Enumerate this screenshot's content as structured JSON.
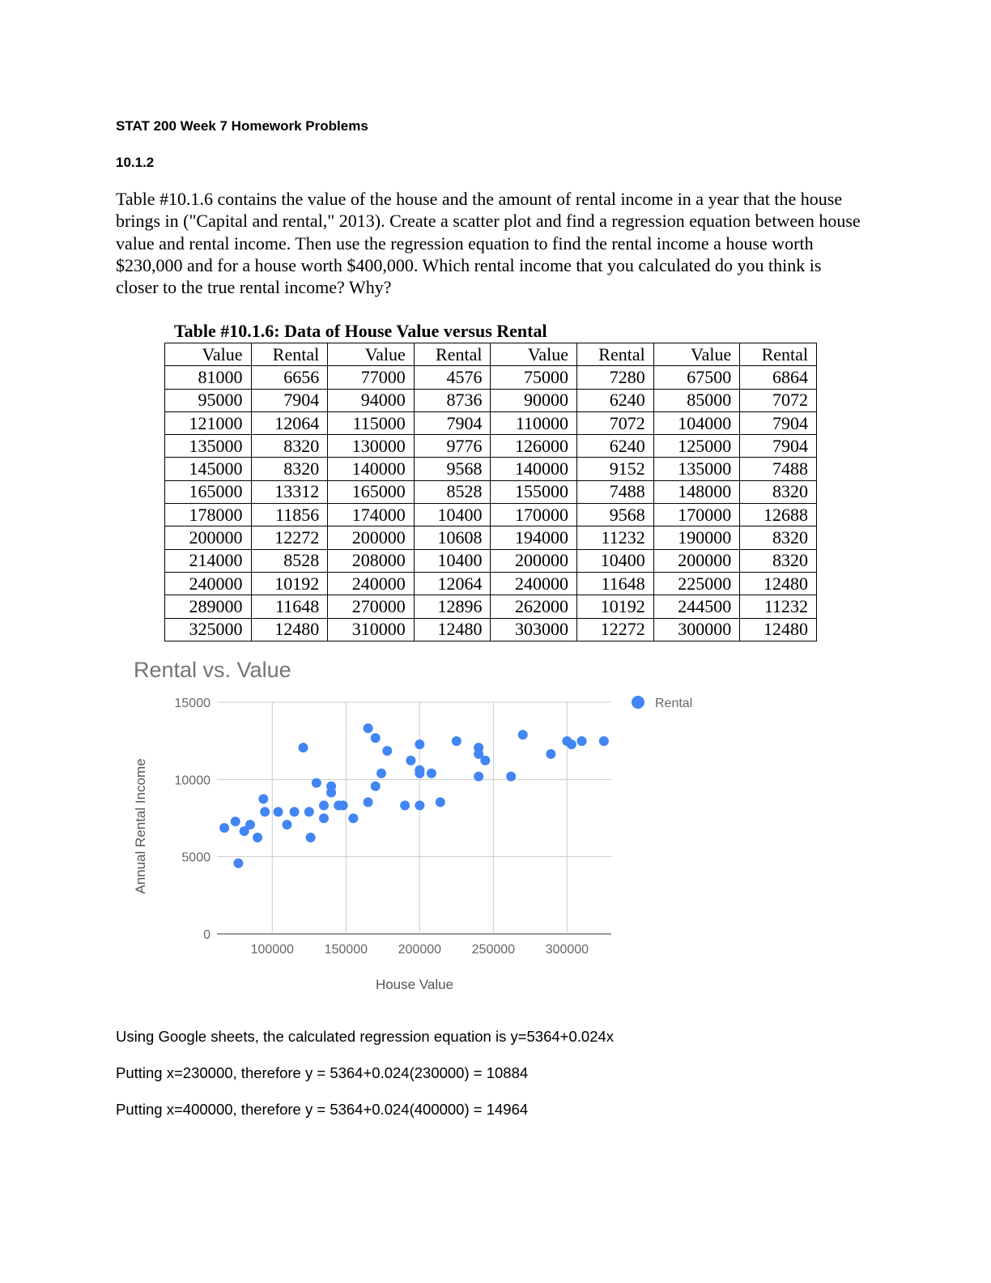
{
  "header": {
    "title": "STAT 200 Week 7 Homework Problems",
    "problem": "10.1.2"
  },
  "question": "Table #10.1.6 contains the value of the house and the amount of rental income in a year that the house brings in (\"Capital and rental,\" 2013).  Create a scatter plot and find a regression equation between house value and rental income.  Then use the regression equation to find the rental income a house worth $230,000 and for a house worth $400,000.  Which rental income that you calculated do you think is closer to the true rental income?  Why?",
  "table": {
    "title": "Table #10.1.6: Data of House Value versus Rental",
    "header": [
      "Value",
      "Rental",
      "Value",
      "Rental",
      "Value",
      "Rental",
      "Value",
      "Rental"
    ],
    "rows": [
      [
        81000,
        6656,
        77000,
        4576,
        75000,
        7280,
        67500,
        6864
      ],
      [
        95000,
        7904,
        94000,
        8736,
        90000,
        6240,
        85000,
        7072
      ],
      [
        121000,
        12064,
        115000,
        7904,
        110000,
        7072,
        104000,
        7904
      ],
      [
        135000,
        8320,
        130000,
        9776,
        126000,
        6240,
        125000,
        7904
      ],
      [
        145000,
        8320,
        140000,
        9568,
        140000,
        9152,
        135000,
        7488
      ],
      [
        165000,
        13312,
        165000,
        8528,
        155000,
        7488,
        148000,
        8320
      ],
      [
        178000,
        11856,
        174000,
        10400,
        170000,
        9568,
        170000,
        12688
      ],
      [
        200000,
        12272,
        200000,
        10608,
        194000,
        11232,
        190000,
        8320
      ],
      [
        214000,
        8528,
        208000,
        10400,
        200000,
        10400,
        200000,
        8320
      ],
      [
        240000,
        10192,
        240000,
        12064,
        240000,
        11648,
        225000,
        12480
      ],
      [
        289000,
        11648,
        270000,
        12896,
        262000,
        10192,
        244500,
        11232
      ],
      [
        325000,
        12480,
        310000,
        12480,
        303000,
        12272,
        300000,
        12480
      ]
    ]
  },
  "chart_data": {
    "type": "scatter",
    "title": "Rental vs. Value",
    "x_label": "House Value",
    "y_label": "Annual Rental Income",
    "legend": "right",
    "grid": true,
    "xlim": [
      62500,
      330000
    ],
    "xticks": [
      100000,
      150000,
      200000,
      250000,
      300000
    ],
    "ylim": [
      0,
      15000
    ],
    "yticks": [
      0,
      5000,
      10000,
      15000
    ],
    "series": [
      {
        "name": "Rental",
        "color": "#4285f4",
        "x": [
          81000,
          95000,
          121000,
          135000,
          145000,
          165000,
          178000,
          200000,
          214000,
          240000,
          289000,
          325000,
          77000,
          94000,
          115000,
          130000,
          140000,
          165000,
          174000,
          200000,
          208000,
          240000,
          270000,
          310000,
          75000,
          90000,
          110000,
          126000,
          140000,
          155000,
          170000,
          194000,
          200000,
          240000,
          262000,
          303000,
          67500,
          85000,
          104000,
          125000,
          135000,
          148000,
          170000,
          190000,
          200000,
          225000,
          244500,
          300000
        ],
        "values": [
          6656,
          7904,
          12064,
          8320,
          8320,
          13312,
          11856,
          12272,
          8528,
          10192,
          11648,
          12480,
          4576,
          8736,
          7904,
          9776,
          9568,
          8528,
          10400,
          10608,
          10400,
          12064,
          12896,
          12480,
          7280,
          6240,
          7072,
          6240,
          9152,
          7488,
          9568,
          11232,
          10400,
          11648,
          10192,
          12272,
          6864,
          7072,
          7904,
          7904,
          7488,
          8320,
          12688,
          8320,
          8320,
          12480,
          11232,
          12480
        ]
      }
    ]
  },
  "answer": [
    "Using Google sheets, the calculated regression equation is y=5364+0.024x",
    "Putting x=230000, therefore y = 5364+0.024(230000) = 10884",
    "Putting x=400000, therefore y = 5364+0.024(400000) = 14964"
  ]
}
